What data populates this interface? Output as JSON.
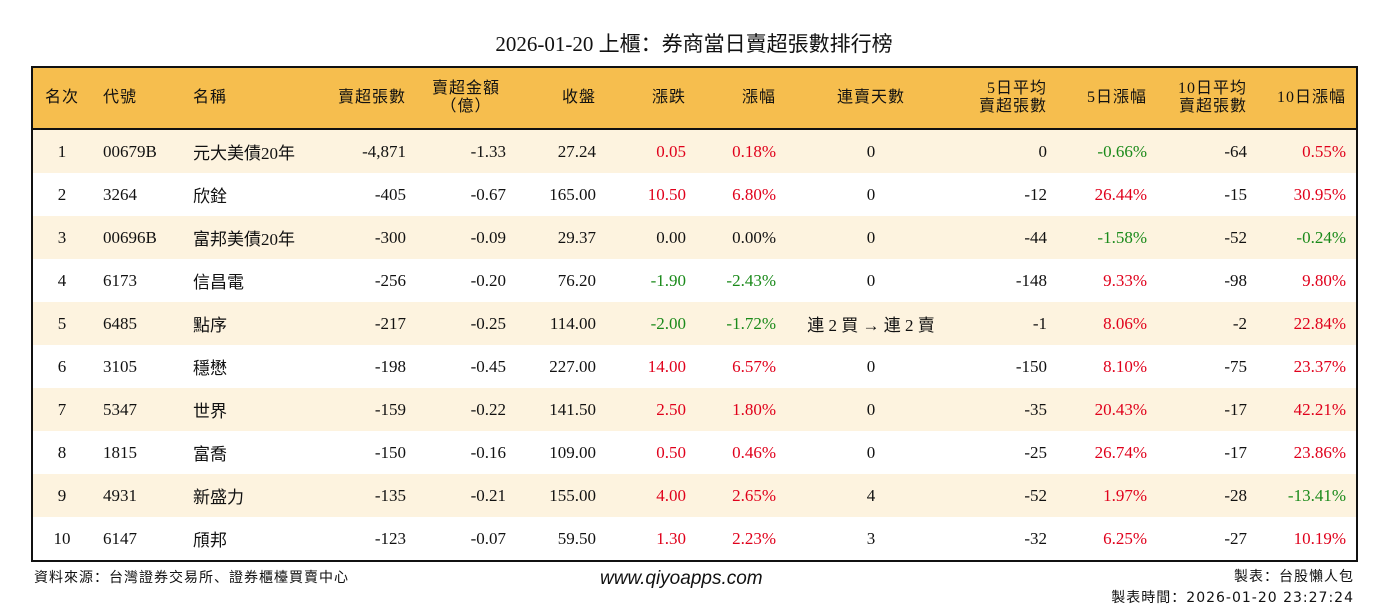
{
  "title": "2026-01-20 上櫃：券商當日賣超張數排行榜",
  "headers": [
    "名次",
    "代號",
    "名稱",
    "賣超張數",
    "賣超金額\n（億）",
    "收盤",
    "漲跌",
    "漲幅",
    "連賣天數",
    "5日平均\n賣超張數",
    "5日漲幅",
    "10日平均\n賣超張數",
    "10日漲幅"
  ],
  "rows": [
    [
      "1",
      "00679B",
      "元大美債20年",
      "-4,871",
      "-1.33",
      "27.24",
      "0.05",
      "0.18%",
      "0",
      "0",
      "-0.66%",
      "-64",
      "0.55%"
    ],
    [
      "2",
      "3264",
      "欣銓",
      "-405",
      "-0.67",
      "165.00",
      "10.50",
      "6.80%",
      "0",
      "-12",
      "26.44%",
      "-15",
      "30.95%"
    ],
    [
      "3",
      "00696B",
      "富邦美債20年",
      "-300",
      "-0.09",
      "29.37",
      "0.00",
      "0.00%",
      "0",
      "-44",
      "-1.58%",
      "-52",
      "-0.24%"
    ],
    [
      "4",
      "6173",
      "信昌電",
      "-256",
      "-0.20",
      "76.20",
      "-1.90",
      "-2.43%",
      "0",
      "-148",
      "9.33%",
      "-98",
      "9.80%"
    ],
    [
      "5",
      "6485",
      "點序",
      "-217",
      "-0.25",
      "114.00",
      "-2.00",
      "-1.72%",
      "連 2 買 → 連 2 賣",
      "-1",
      "8.06%",
      "-2",
      "22.84%"
    ],
    [
      "6",
      "3105",
      "穩懋",
      "-198",
      "-0.45",
      "227.00",
      "14.00",
      "6.57%",
      "0",
      "-150",
      "8.10%",
      "-75",
      "23.37%"
    ],
    [
      "7",
      "5347",
      "世界",
      "-159",
      "-0.22",
      "141.50",
      "2.50",
      "1.80%",
      "0",
      "-35",
      "20.43%",
      "-17",
      "42.21%"
    ],
    [
      "8",
      "1815",
      "富喬",
      "-150",
      "-0.16",
      "109.00",
      "0.50",
      "0.46%",
      "0",
      "-25",
      "26.74%",
      "-17",
      "23.86%"
    ],
    [
      "9",
      "4931",
      "新盛力",
      "-135",
      "-0.21",
      "155.00",
      "4.00",
      "2.65%",
      "4",
      "-52",
      "1.97%",
      "-28",
      "-13.41%"
    ],
    [
      "10",
      "6147",
      "頎邦",
      "-123",
      "-0.07",
      "59.50",
      "1.30",
      "2.23%",
      "3",
      "-32",
      "6.25%",
      "-27",
      "10.19%"
    ]
  ],
  "footer": {
    "source": "資料來源：台灣證券交易所、證券櫃檯買賣中心",
    "site": "www.qiyoapps.com",
    "maker": "製表：台股懶人包",
    "time": "製表時間：2026-01-20 23:27:24"
  },
  "colors": {
    "header": "#f6be4e",
    "up": "#e0001b",
    "down": "#1a8a1a",
    "odd_row": "#fdf3df"
  }
}
